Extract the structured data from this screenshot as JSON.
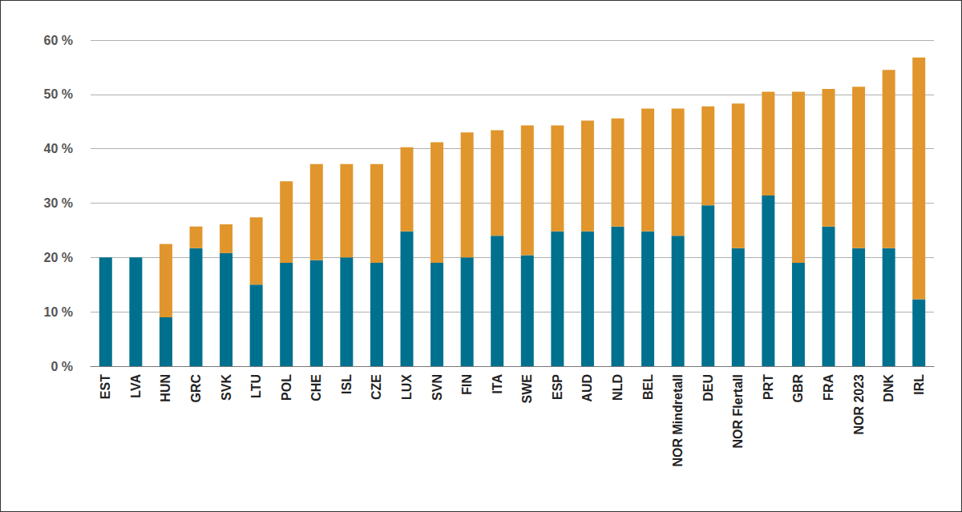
{
  "chart_data": {
    "type": "bar",
    "stacked": true,
    "grid": true,
    "categories": [
      "EST",
      "LVA",
      "HUN",
      "GRC",
      "SVK",
      "LTU",
      "POL",
      "CHE",
      "ISL",
      "CZE",
      "LUX",
      "SVN",
      "FIN",
      "ITA",
      "SWE",
      "ESP",
      "AUD",
      "NLD",
      "BEL",
      "NOR Mindretall",
      "DEU",
      "NOR Flertall",
      "PRT",
      "GBR",
      "FRA",
      "NOR 2023",
      "DNK",
      "IRL"
    ],
    "series": [
      {
        "color": "#00708f",
        "values": [
          20,
          20,
          9,
          21.7,
          20.8,
          15,
          19,
          19.5,
          20,
          19,
          24.8,
          19,
          20,
          24,
          20.4,
          24.8,
          24.8,
          25.7,
          24.8,
          24,
          29.6,
          21.7,
          31.4,
          19,
          25.7,
          21.7,
          21.7,
          12.3
        ]
      },
      {
        "color": "#e0962c",
        "values": [
          0,
          0,
          13.5,
          4,
          5.3,
          12.4,
          15,
          17.7,
          17.2,
          18.2,
          15.5,
          22.2,
          23,
          19.4,
          23.9,
          19.5,
          20.4,
          19.9,
          22.6,
          23.4,
          18.2,
          26.6,
          19.1,
          31.5,
          25.3,
          29.7,
          32.8,
          44.5
        ]
      }
    ],
    "ylim": [
      0,
      60
    ],
    "yticks": [
      {
        "value": 0,
        "label": "0 %"
      },
      {
        "value": 10,
        "label": "10 %"
      },
      {
        "value": 20,
        "label": "20 %"
      },
      {
        "value": 30,
        "label": "30 %"
      },
      {
        "value": 40,
        "label": "40 %"
      },
      {
        "value": 50,
        "label": "50 %"
      },
      {
        "value": 60,
        "label": "60 %"
      }
    ]
  }
}
